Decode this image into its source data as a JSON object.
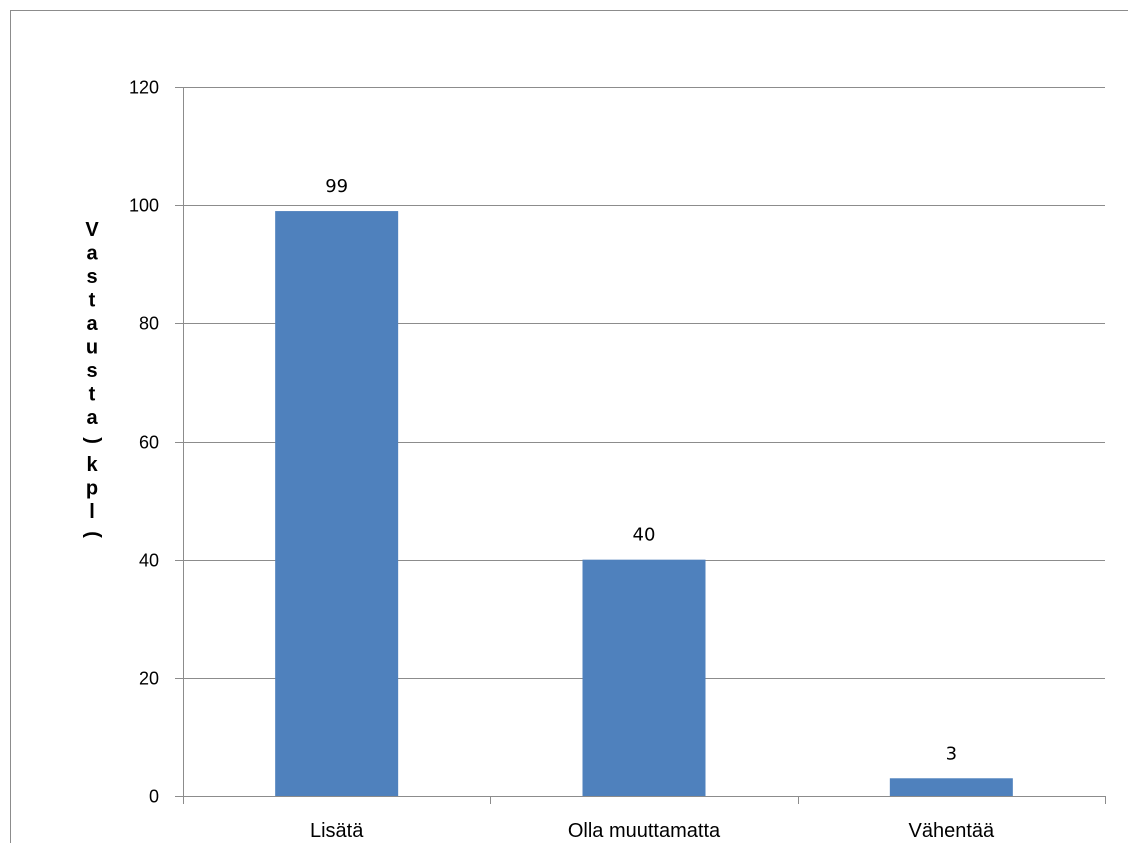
{
  "chart_data": {
    "type": "bar",
    "categories": [
      "Lisätä",
      "Olla muuttamatta",
      "Vähentää"
    ],
    "values": [
      99,
      40,
      3
    ],
    "title": "",
    "xlabel": "",
    "ylabel": "Vastausta (kpl)",
    "ylim": [
      0,
      120
    ],
    "yticks": [
      0,
      20,
      40,
      60,
      80,
      100,
      120
    ],
    "grid": true,
    "legend": "none",
    "bar_color": "#4f81bd",
    "grid_color": "#8c8c8c"
  }
}
